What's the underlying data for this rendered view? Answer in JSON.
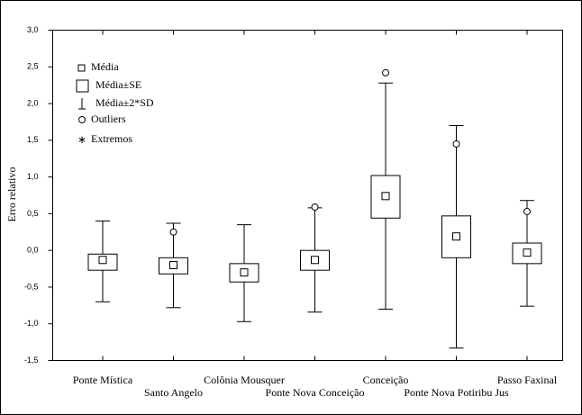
{
  "chart_data": {
    "type": "box",
    "y_label": "Erro relativo",
    "categories": [
      "Ponte Mística",
      "Santo Angelo",
      "Colônia Mousquer",
      "Ponte Nova Conceição",
      "Conceição",
      "Ponte Nova Potiribu Jus",
      "Passo Faxinal"
    ],
    "mean": [
      -0.13,
      -0.2,
      -0.3,
      -0.13,
      0.74,
      0.19,
      -0.03
    ],
    "box_low": [
      -0.27,
      -0.32,
      -0.43,
      -0.27,
      0.44,
      -0.1,
      -0.18
    ],
    "box_high": [
      -0.05,
      -0.1,
      -0.18,
      0.0,
      1.02,
      0.47,
      0.1
    ],
    "whisker_low": [
      -0.7,
      -0.78,
      -0.97,
      -0.84,
      -0.8,
      -1.33,
      -0.76
    ],
    "whisker_high": [
      0.4,
      0.37,
      0.35,
      0.58,
      2.28,
      1.7,
      0.68
    ],
    "outliers": [
      null,
      0.25,
      null,
      0.59,
      2.42,
      1.45,
      0.53
    ],
    "legend": [
      "Média",
      "Média±SE",
      "Média±2*SD",
      "Outliers",
      "Extremos"
    ],
    "ylim": [
      -1.5,
      3.0
    ],
    "yticks": [
      {
        "value": -1.5,
        "label": "-1,5"
      },
      {
        "value": -1.0,
        "label": "-1,0"
      },
      {
        "value": -0.5,
        "label": "-0,5"
      },
      {
        "value": 0.0,
        "label": "0,0"
      },
      {
        "value": 0.5,
        "label": "0,5"
      },
      {
        "value": 1.0,
        "label": "1,0"
      },
      {
        "value": 1.5,
        "label": "1,5"
      },
      {
        "value": 2.0,
        "label": "2,0"
      },
      {
        "value": 2.5,
        "label": "2,5"
      },
      {
        "value": 3.0,
        "label": "3,0"
      }
    ],
    "color": "#000000"
  }
}
